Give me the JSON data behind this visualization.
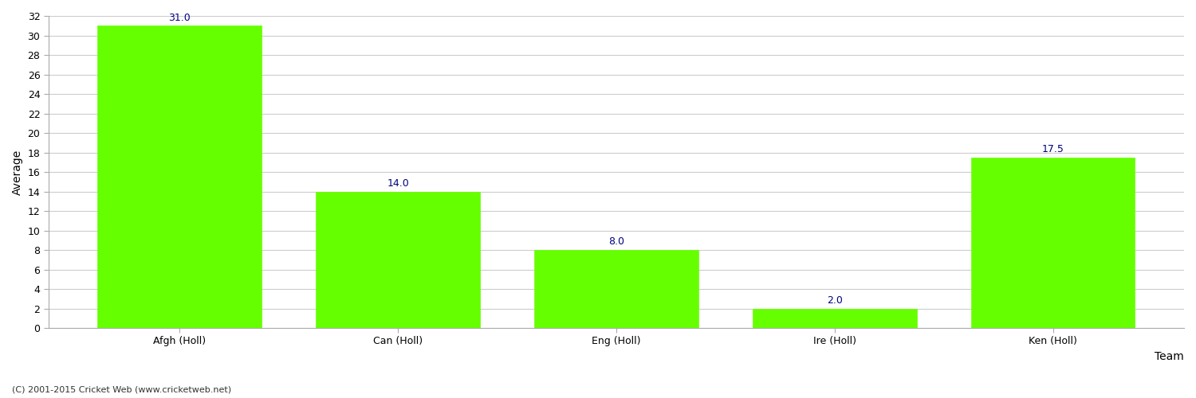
{
  "categories": [
    "Afgh (Holl)",
    "Can (Holl)",
    "Eng (Holl)",
    "Ire (Holl)",
    "Ken (Holl)"
  ],
  "values": [
    31.0,
    14.0,
    8.0,
    2.0,
    17.5
  ],
  "bar_color": "#66ff00",
  "bar_edge_color": "#66ff00",
  "value_label_color": "#000080",
  "value_label_fontsize": 9,
  "xlabel": "Team",
  "ylabel": "Average",
  "ylim": [
    0,
    32
  ],
  "yticks": [
    0,
    2,
    4,
    6,
    8,
    10,
    12,
    14,
    16,
    18,
    20,
    22,
    24,
    26,
    28,
    30,
    32
  ],
  "grid_color": "#cccccc",
  "background_color": "#ffffff",
  "footer_text": "(C) 2001-2015 Cricket Web (www.cricketweb.net)",
  "footer_fontsize": 8,
  "footer_color": "#333333",
  "xlabel_fontsize": 10,
  "ylabel_fontsize": 10,
  "tick_fontsize": 9,
  "bar_width": 0.75
}
